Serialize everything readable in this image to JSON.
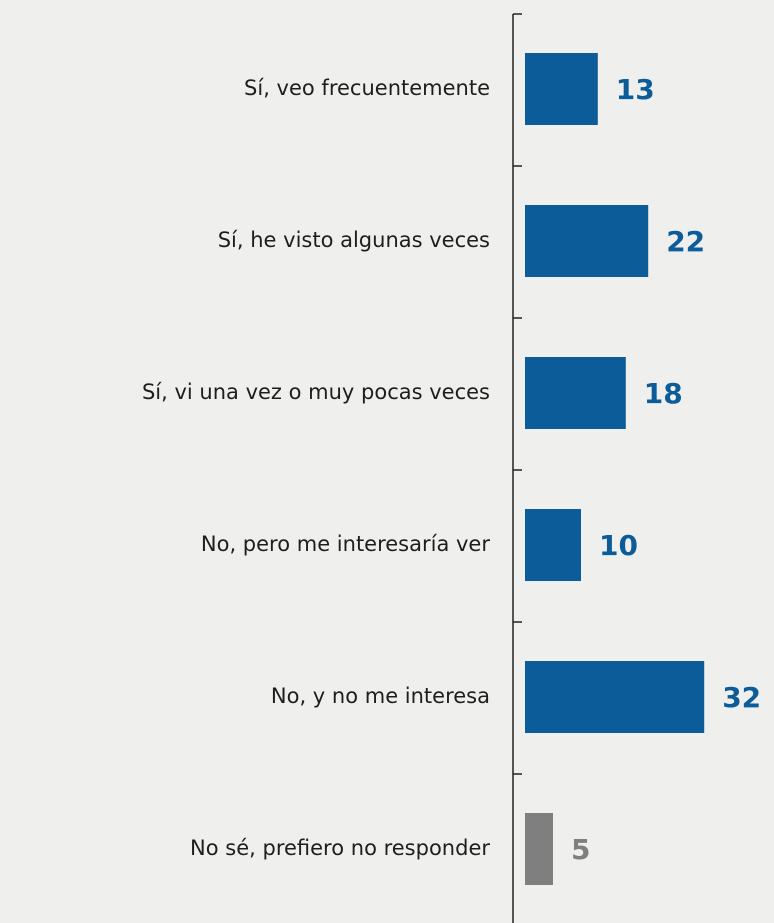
{
  "chart_data": {
    "type": "barh",
    "categories": [
      "Sí, veo frecuentemente",
      "Sí, he visto algunas veces",
      "Sí, vi una vez o muy pocas veces",
      "No, pero me interesaría ver",
      "No, y no me interesa",
      "No sé, prefiero no responder"
    ],
    "values": [
      13,
      22,
      18,
      10,
      32,
      5
    ],
    "colors": [
      "#0b5c99",
      "#0b5c99",
      "#0b5c99",
      "#0b5c99",
      "#0b5c99",
      "#7f7f7f"
    ]
  }
}
